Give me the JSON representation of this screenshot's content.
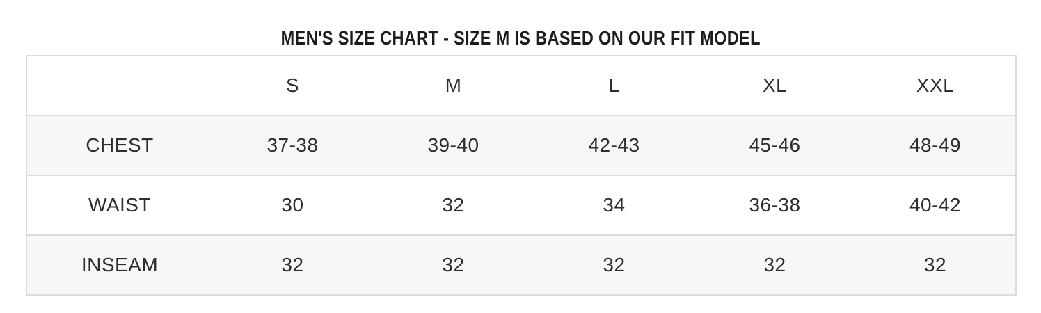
{
  "title": "MEN'S SIZE CHART - SIZE M IS BASED ON OUR FIT MODEL",
  "chart_data": {
    "type": "table",
    "columns": [
      "",
      "S",
      "M",
      "L",
      "XL",
      "XXL"
    ],
    "rows": [
      {
        "label": "CHEST",
        "values": [
          "37-38",
          "39-40",
          "42-43",
          "45-46",
          "48-49"
        ]
      },
      {
        "label": "WAIST",
        "values": [
          "30",
          "32",
          "34",
          "36-38",
          "40-42"
        ]
      },
      {
        "label": "INSEAM",
        "values": [
          "32",
          "32",
          "32",
          "32",
          "32"
        ]
      }
    ],
    "layout": {
      "striped_rows": [
        "CHEST",
        "INSEAM"
      ],
      "grid": "horizontal-only"
    },
    "colors": {
      "title_text": "#1c1c1c",
      "cell_text": "#2e2e2e",
      "border": "#dcdcdc",
      "stripe_background": "#f7f7f7",
      "background": "#ffffff"
    }
  }
}
